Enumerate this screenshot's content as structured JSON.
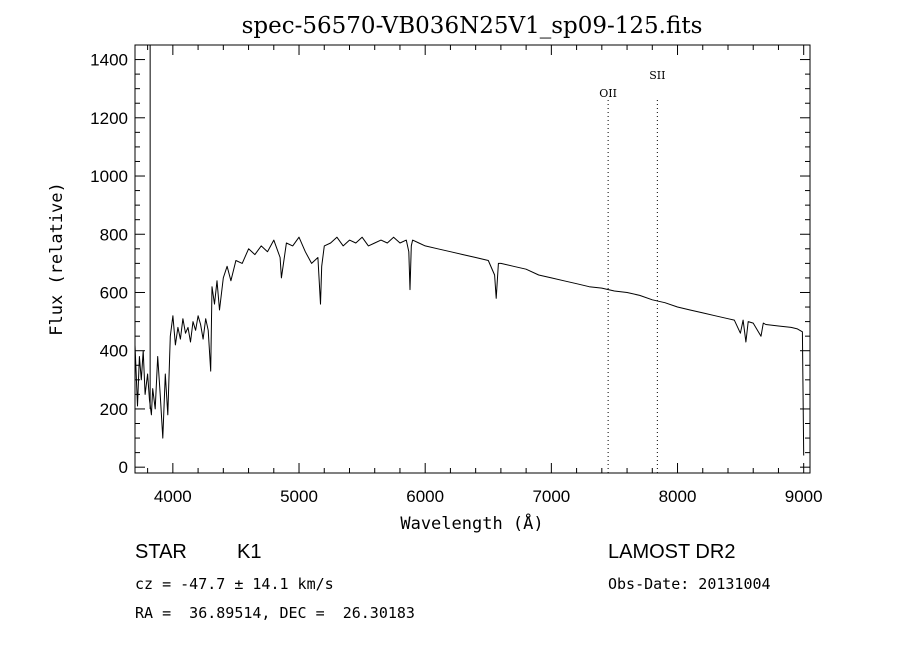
{
  "chart_data": {
    "type": "line",
    "title": "spec-56570-VB036N25V1_sp09-125.fits",
    "xlabel": "Wavelength (Å)",
    "ylabel": "Flux (relative)",
    "xlim": [
      3700,
      9050
    ],
    "ylim": [
      -20,
      1450
    ],
    "xticks": [
      "4000",
      "5000",
      "6000",
      "7000",
      "8000",
      "9000"
    ],
    "yticks": [
      "0",
      "200",
      "400",
      "600",
      "800",
      "1000",
      "1200",
      "1400"
    ],
    "grid": false,
    "series": [
      {
        "x": [
          3700,
          3720,
          3735,
          3750,
          3765,
          3780,
          3800,
          3815,
          3830,
          3840,
          3860,
          3880,
          3900,
          3920,
          3940,
          3960,
          3980,
          4000,
          4020,
          4040,
          4060,
          4080,
          4100,
          4120,
          4140,
          4160,
          4180,
          4200,
          4220,
          4240,
          4260,
          4280,
          4300,
          4310,
          4330,
          4350,
          4370,
          4400,
          4430,
          4460,
          4500,
          4550,
          4600,
          4650,
          4700,
          4750,
          4800,
          4850,
          4860,
          4900,
          4950,
          5000,
          5050,
          5100,
          5150,
          5170,
          5180,
          5200,
          5250,
          5300,
          5350,
          5400,
          5450,
          5500,
          5550,
          5600,
          5650,
          5700,
          5750,
          5800,
          5850,
          5870,
          5880,
          5890,
          5900,
          5950,
          6000,
          6100,
          6200,
          6300,
          6400,
          6500,
          6550,
          6563,
          6580,
          6600,
          6700,
          6800,
          6900,
          7000,
          7100,
          7200,
          7300,
          7400,
          7500,
          7600,
          7700,
          7800,
          7900,
          8000,
          8100,
          8200,
          8300,
          8400,
          8450,
          8498,
          8520,
          8542,
          8560,
          8600,
          8662,
          8680,
          8700,
          8800,
          8900,
          8950,
          8990,
          9000
        ],
        "y": [
          420,
          210,
          380,
          300,
          400,
          250,
          320,
          230,
          180,
          270,
          200,
          380,
          250,
          100,
          320,
          180,
          450,
          520,
          420,
          480,
          440,
          510,
          460,
          480,
          430,
          500,
          470,
          520,
          490,
          440,
          510,
          470,
          330,
          620,
          560,
          640,
          540,
          650,
          690,
          640,
          710,
          700,
          750,
          730,
          760,
          740,
          780,
          720,
          650,
          770,
          760,
          790,
          740,
          700,
          720,
          560,
          690,
          760,
          770,
          790,
          760,
          780,
          770,
          790,
          760,
          770,
          780,
          770,
          790,
          770,
          780,
          740,
          610,
          760,
          780,
          770,
          760,
          750,
          740,
          730,
          720,
          710,
          660,
          580,
          700,
          700,
          690,
          680,
          660,
          650,
          640,
          630,
          620,
          615,
          605,
          600,
          590,
          575,
          565,
          550,
          540,
          530,
          520,
          510,
          505,
          460,
          505,
          430,
          500,
          495,
          450,
          495,
          490,
          485,
          480,
          475,
          465,
          40
        ]
      }
    ],
    "annotations": [
      {
        "label": "OII",
        "x": 7450
      },
      {
        "label": "SII",
        "x": 7840
      }
    ]
  },
  "info": {
    "object_type": "STAR",
    "subclass": "K1",
    "survey": "LAMOST DR2",
    "redshift_text": "cz = -47.7 ± 14.1 km/s",
    "obs_date_text": "Obs-Date: 20131004",
    "coords_text": "RA =  36.89514, DEC =  26.30183"
  }
}
